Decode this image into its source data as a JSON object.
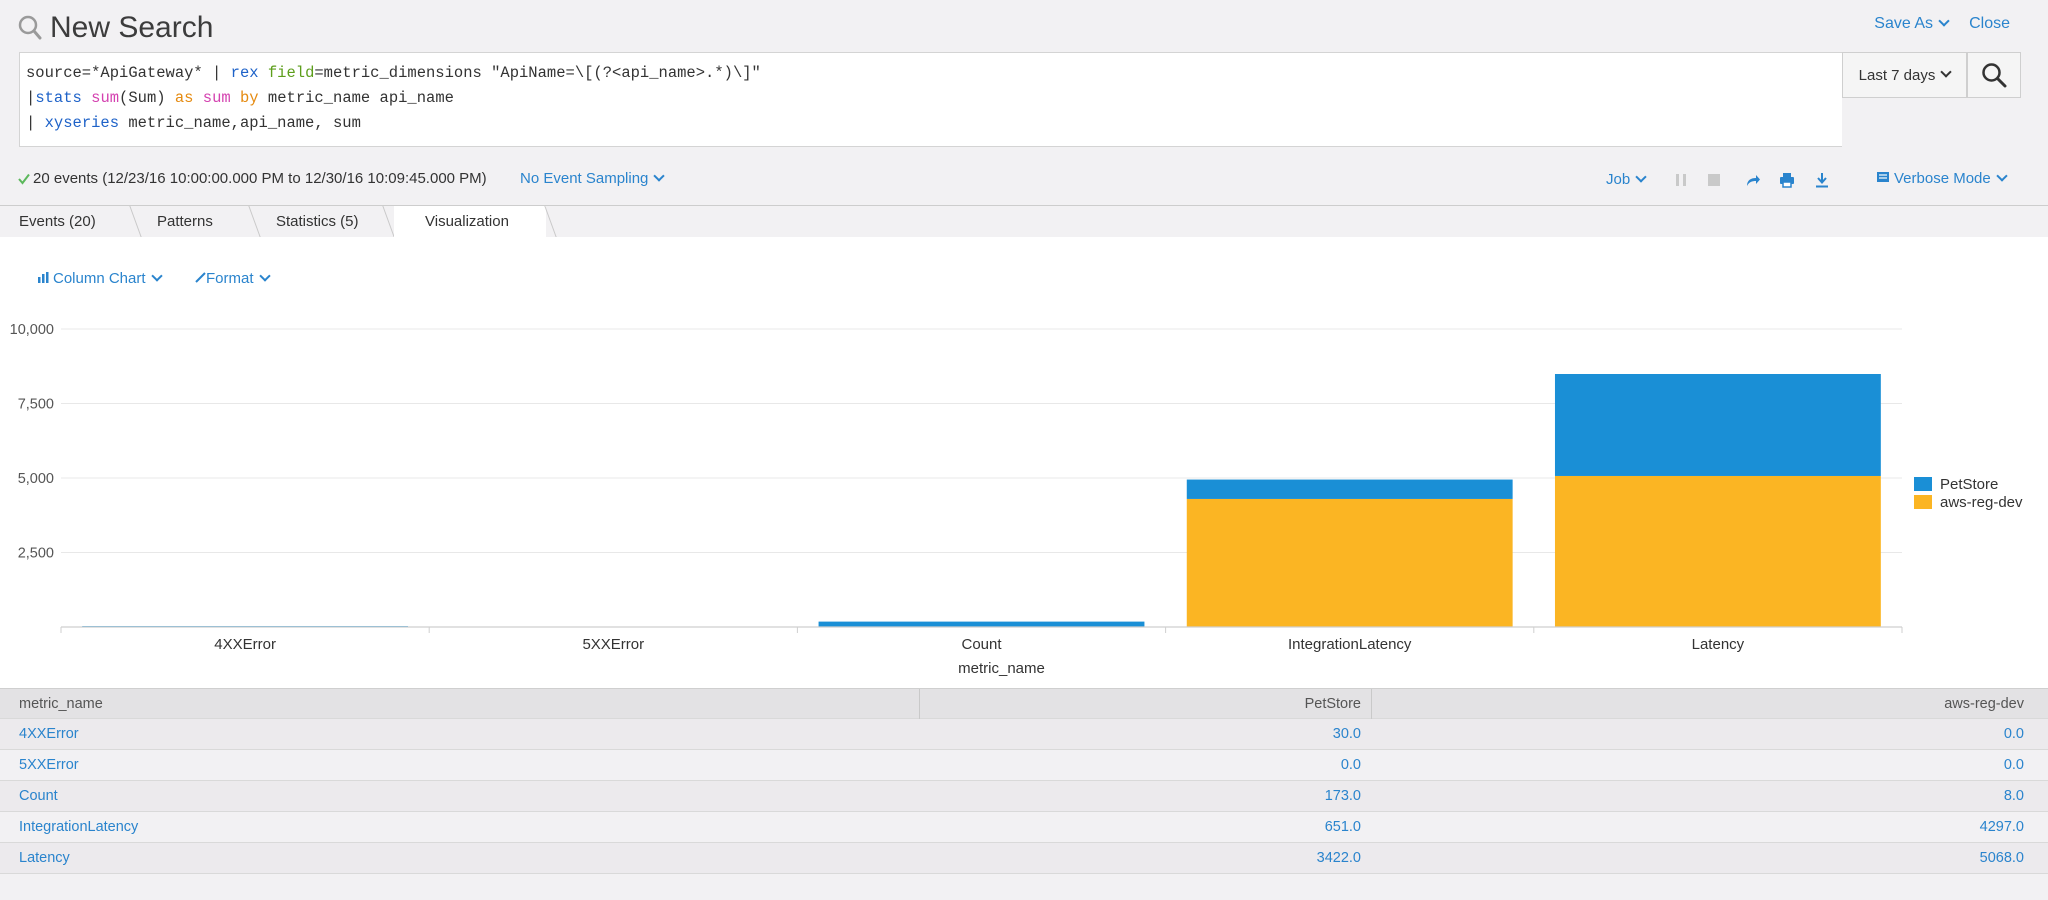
{
  "header": {
    "title": "New Search",
    "save_as_label": "Save As",
    "close_label": "Close"
  },
  "query": {
    "line1": {
      "a": "source=*ApiGateway* | ",
      "b": "rex",
      "c": " ",
      "d": "field",
      "e": "=metric_dimensions \"ApiName=\\[(?<api_name>.*)\\]\""
    },
    "line2": {
      "a": "|",
      "b": "stats",
      "c": " ",
      "d": "sum",
      "e": "(Sum) ",
      "f": "as",
      "g": " ",
      "h": "sum",
      "i": " ",
      "j": "by",
      "k": " metric_name api_name"
    },
    "line3": {
      "a": "| ",
      "b": "xyseries",
      "c": " metric_name,api_name, sum"
    }
  },
  "time_picker": {
    "label": "Last 7 days"
  },
  "status": {
    "events_text": "20 events (12/23/16 10:00:00.000 PM to 12/30/16 10:09:45.000 PM)",
    "sampling_label": "No Event Sampling",
    "job_label": "Job",
    "mode_label": "Verbose Mode"
  },
  "tabs": [
    {
      "label": "Events (20)"
    },
    {
      "label": "Patterns"
    },
    {
      "label": "Statistics (5)"
    },
    {
      "label": "Visualization"
    }
  ],
  "viz_toolbar": {
    "chart_type_label": "Column Chart",
    "format_label": "Format"
  },
  "colors": {
    "accent": "#2a84cd",
    "petstore": "#1a8fd6",
    "aws_reg_dev": "#fbb523"
  },
  "chart_data": {
    "type": "bar",
    "stacked": true,
    "categories": [
      "4XXError",
      "5XXError",
      "Count",
      "IntegrationLatency",
      "Latency"
    ],
    "series": [
      {
        "name": "aws-reg-dev",
        "values": [
          0,
          0,
          8,
          4297,
          5068
        ]
      },
      {
        "name": "PetStore",
        "values": [
          30,
          0,
          173,
          651,
          3422
        ]
      }
    ],
    "xlabel": "metric_name",
    "ylabel": "",
    "ylim": [
      0,
      10000
    ],
    "yticks": [
      2500,
      5000,
      7500,
      10000
    ],
    "ytick_labels": [
      "2,500",
      "5,000",
      "7,500",
      "10,000"
    ],
    "legend": {
      "position": "right",
      "entries": [
        "PetStore",
        "aws-reg-dev"
      ]
    },
    "grid": true
  },
  "table": {
    "headers": [
      "metric_name",
      "PetStore",
      "aws-reg-dev"
    ],
    "rows": [
      [
        "4XXError",
        "30.0",
        "0.0"
      ],
      [
        "5XXError",
        "0.0",
        "0.0"
      ],
      [
        "Count",
        "173.0",
        "8.0"
      ],
      [
        "IntegrationLatency",
        "651.0",
        "4297.0"
      ],
      [
        "Latency",
        "3422.0",
        "5068.0"
      ]
    ]
  }
}
